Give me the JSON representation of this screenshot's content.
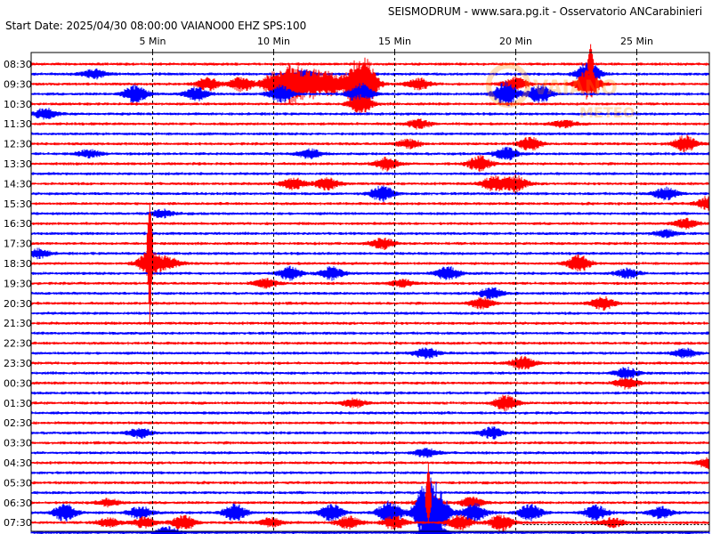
{
  "header": {
    "title": "SEISMODRUM - www.sara.pg.it - Osservatorio ANCarabinieri",
    "start_line": "Start Date: 2025/04/30 08:00:00 VAIANO00 EHZ  SPS:100"
  },
  "colors": {
    "red_trace": "#ff0000",
    "blue_trace": "#0000ff",
    "frame": "#000000",
    "grid": "#000000",
    "watermark": "#ff8c00"
  },
  "chart_data": {
    "type": "line",
    "description_free": true,
    "x_unit": "minutes",
    "xlim": [
      0,
      28
    ],
    "x_ticks": [
      {
        "value": 5,
        "label": "5 Min"
      },
      {
        "value": 10,
        "label": "10 Min"
      },
      {
        "value": 15,
        "label": "15 Min"
      },
      {
        "value": 20,
        "label": "20 Min"
      },
      {
        "value": 25,
        "label": "25 Min"
      }
    ],
    "grid": true,
    "row_labels": [
      "08:30",
      "09:30",
      "10:30",
      "11:30",
      "12:30",
      "13:30",
      "14:30",
      "15:30",
      "16:30",
      "17:30",
      "18:30",
      "19:30",
      "20:30",
      "21:30",
      "22:30",
      "23:30",
      "00:30",
      "01:30",
      "02:30",
      "03:30",
      "04:30",
      "05:30",
      "06:30",
      "07:30"
    ],
    "traces_per_row": 2,
    "trace_colors": [
      "red",
      "blue"
    ],
    "bursts": [
      {
        "row": 0,
        "trace": 1,
        "minute": 2.6,
        "amp": 5
      },
      {
        "row": 0,
        "trace": 1,
        "minute": 11.3,
        "amp": 4
      },
      {
        "row": 0,
        "trace": 1,
        "minute": 23.0,
        "amp": 14
      },
      {
        "row": 1,
        "trace": 0,
        "minute": 7.3,
        "amp": 7
      },
      {
        "row": 1,
        "trace": 0,
        "minute": 8.7,
        "amp": 8
      },
      {
        "row": 1,
        "trace": 0,
        "minute": 10.0,
        "amp": 12
      },
      {
        "row": 1,
        "trace": 0,
        "minute": 10.8,
        "amp": 22
      },
      {
        "row": 1,
        "trace": 0,
        "minute": 11.6,
        "amp": 14
      },
      {
        "row": 1,
        "trace": 0,
        "minute": 12.3,
        "amp": 12
      },
      {
        "row": 1,
        "trace": 0,
        "minute": 13.3,
        "amp": 18
      },
      {
        "row": 1,
        "trace": 0,
        "minute": 13.8,
        "amp": 25
      },
      {
        "row": 1,
        "trace": 0,
        "minute": 16.0,
        "amp": 6
      },
      {
        "row": 1,
        "trace": 0,
        "minute": 20.0,
        "amp": 8
      },
      {
        "row": 1,
        "trace": 0,
        "minute": 23.0,
        "amp": 16
      },
      {
        "row": 1,
        "trace": 1,
        "minute": 4.3,
        "amp": 10
      },
      {
        "row": 1,
        "trace": 1,
        "minute": 6.8,
        "amp": 7
      },
      {
        "row": 1,
        "trace": 1,
        "minute": 10.3,
        "amp": 9
      },
      {
        "row": 1,
        "trace": 1,
        "minute": 13.6,
        "amp": 12
      },
      {
        "row": 1,
        "trace": 1,
        "minute": 19.6,
        "amp": 14
      },
      {
        "row": 1,
        "trace": 1,
        "minute": 21.0,
        "amp": 10
      },
      {
        "row": 2,
        "trace": 0,
        "minute": 13.6,
        "amp": 10
      },
      {
        "row": 2,
        "trace": 1,
        "minute": 0.6,
        "amp": 6
      },
      {
        "row": 3,
        "trace": 0,
        "minute": 16.0,
        "amp": 5
      },
      {
        "row": 3,
        "trace": 0,
        "minute": 22.0,
        "amp": 4
      },
      {
        "row": 4,
        "trace": 0,
        "minute": 15.6,
        "amp": 5
      },
      {
        "row": 4,
        "trace": 0,
        "minute": 20.6,
        "amp": 7
      },
      {
        "row": 4,
        "trace": 0,
        "minute": 27.0,
        "amp": 9
      },
      {
        "row": 4,
        "trace": 1,
        "minute": 2.4,
        "amp": 4
      },
      {
        "row": 4,
        "trace": 1,
        "minute": 11.5,
        "amp": 5
      },
      {
        "row": 4,
        "trace": 1,
        "minute": 19.6,
        "amp": 7
      },
      {
        "row": 5,
        "trace": 0,
        "minute": 14.7,
        "amp": 7
      },
      {
        "row": 5,
        "trace": 0,
        "minute": 18.5,
        "amp": 8
      },
      {
        "row": 6,
        "trace": 0,
        "minute": 10.8,
        "amp": 6
      },
      {
        "row": 6,
        "trace": 0,
        "minute": 12.2,
        "amp": 7
      },
      {
        "row": 6,
        "trace": 0,
        "minute": 19.1,
        "amp": 8
      },
      {
        "row": 6,
        "trace": 0,
        "minute": 20.0,
        "amp": 9
      },
      {
        "row": 6,
        "trace": 1,
        "minute": 14.5,
        "amp": 9
      },
      {
        "row": 6,
        "trace": 1,
        "minute": 26.2,
        "amp": 7
      },
      {
        "row": 7,
        "trace": 0,
        "minute": 28.0,
        "amp": 8
      },
      {
        "row": 7,
        "trace": 1,
        "minute": 5.4,
        "amp": 4
      },
      {
        "row": 8,
        "trace": 0,
        "minute": 27.0,
        "amp": 5
      },
      {
        "row": 8,
        "trace": 1,
        "minute": 26.2,
        "amp": 4
      },
      {
        "row": 9,
        "trace": 0,
        "minute": 14.5,
        "amp": 6
      },
      {
        "row": 9,
        "trace": 1,
        "minute": 0.3,
        "amp": 5
      },
      {
        "row": 10,
        "trace": 0,
        "minute": 4.9,
        "amp": 14
      },
      {
        "row": 10,
        "trace": 0,
        "minute": 5.7,
        "amp": 6
      },
      {
        "row": 10,
        "trace": 0,
        "minute": 22.6,
        "amp": 9
      },
      {
        "row": 10,
        "trace": 1,
        "minute": 10.7,
        "amp": 7
      },
      {
        "row": 10,
        "trace": 1,
        "minute": 12.4,
        "amp": 7
      },
      {
        "row": 10,
        "trace": 1,
        "minute": 17.2,
        "amp": 7
      },
      {
        "row": 10,
        "trace": 1,
        "minute": 24.6,
        "amp": 5
      },
      {
        "row": 11,
        "trace": 0,
        "minute": 9.7,
        "amp": 5
      },
      {
        "row": 11,
        "trace": 0,
        "minute": 15.3,
        "amp": 4
      },
      {
        "row": 11,
        "trace": 1,
        "minute": 19.0,
        "amp": 6
      },
      {
        "row": 12,
        "trace": 0,
        "minute": 18.6,
        "amp": 6
      },
      {
        "row": 12,
        "trace": 0,
        "minute": 23.6,
        "amp": 7
      },
      {
        "row": 14,
        "trace": 1,
        "minute": 16.3,
        "amp": 6
      },
      {
        "row": 14,
        "trace": 1,
        "minute": 27.0,
        "amp": 5
      },
      {
        "row": 15,
        "trace": 0,
        "minute": 20.3,
        "amp": 7
      },
      {
        "row": 15,
        "trace": 1,
        "minute": 24.6,
        "amp": 6
      },
      {
        "row": 16,
        "trace": 0,
        "minute": 24.6,
        "amp": 6
      },
      {
        "row": 17,
        "trace": 0,
        "minute": 13.3,
        "amp": 5
      },
      {
        "row": 17,
        "trace": 0,
        "minute": 19.6,
        "amp": 8
      },
      {
        "row": 18,
        "trace": 1,
        "minute": 4.5,
        "amp": 5
      },
      {
        "row": 18,
        "trace": 1,
        "minute": 19.0,
        "amp": 6
      },
      {
        "row": 19,
        "trace": 1,
        "minute": 16.3,
        "amp": 5
      },
      {
        "row": 20,
        "trace": 0,
        "minute": 28.0,
        "amp": 6
      },
      {
        "row": 22,
        "trace": 0,
        "minute": 3.2,
        "amp": 4
      },
      {
        "row": 22,
        "trace": 0,
        "minute": 16.4,
        "amp": 9
      },
      {
        "row": 22,
        "trace": 0,
        "minute": 18.2,
        "amp": 6
      },
      {
        "row": 22,
        "trace": 1,
        "minute": 1.4,
        "amp": 9
      },
      {
        "row": 22,
        "trace": 1,
        "minute": 4.5,
        "amp": 7
      },
      {
        "row": 22,
        "trace": 1,
        "minute": 8.4,
        "amp": 9
      },
      {
        "row": 22,
        "trace": 1,
        "minute": 12.4,
        "amp": 9
      },
      {
        "row": 22,
        "trace": 1,
        "minute": 14.8,
        "amp": 14
      },
      {
        "row": 22,
        "trace": 1,
        "minute": 16.3,
        "amp": 30
      },
      {
        "row": 22,
        "trace": 1,
        "minute": 16.8,
        "amp": 22
      },
      {
        "row": 22,
        "trace": 1,
        "minute": 18.3,
        "amp": 10
      },
      {
        "row": 22,
        "trace": 1,
        "minute": 20.6,
        "amp": 9
      },
      {
        "row": 22,
        "trace": 1,
        "minute": 23.3,
        "amp": 8
      },
      {
        "row": 22,
        "trace": 1,
        "minute": 26.0,
        "amp": 6
      },
      {
        "row": 23,
        "trace": 0,
        "minute": 3.2,
        "amp": 5
      },
      {
        "row": 23,
        "trace": 0,
        "minute": 4.7,
        "amp": 6
      },
      {
        "row": 23,
        "trace": 0,
        "minute": 6.3,
        "amp": 8
      },
      {
        "row": 23,
        "trace": 0,
        "minute": 9.9,
        "amp": 5
      },
      {
        "row": 23,
        "trace": 0,
        "minute": 13.1,
        "amp": 7
      },
      {
        "row": 23,
        "trace": 0,
        "minute": 15.0,
        "amp": 7
      },
      {
        "row": 23,
        "trace": 0,
        "minute": 17.7,
        "amp": 8
      },
      {
        "row": 23,
        "trace": 0,
        "minute": 19.4,
        "amp": 9
      },
      {
        "row": 23,
        "trace": 0,
        "minute": 24.0,
        "amp": 5
      },
      {
        "row": 23,
        "trace": 1,
        "minute": 5.6,
        "amp": 6
      },
      {
        "row": 23,
        "trace": 1,
        "minute": 16.6,
        "amp": 10
      }
    ],
    "spikes": [
      {
        "row": 9,
        "minute": 4.9,
        "up_rows": 2,
        "down_rows": 4
      },
      {
        "row": 22,
        "minute": 16.4,
        "up_rows": 2,
        "down_rows": 1
      },
      {
        "row": 0,
        "minute": 23.1,
        "up_rows": 1,
        "down_rows": 1
      }
    ]
  },
  "watermark": {
    "text_top": "VAIANO",
    "text_bottom": "METEO"
  }
}
